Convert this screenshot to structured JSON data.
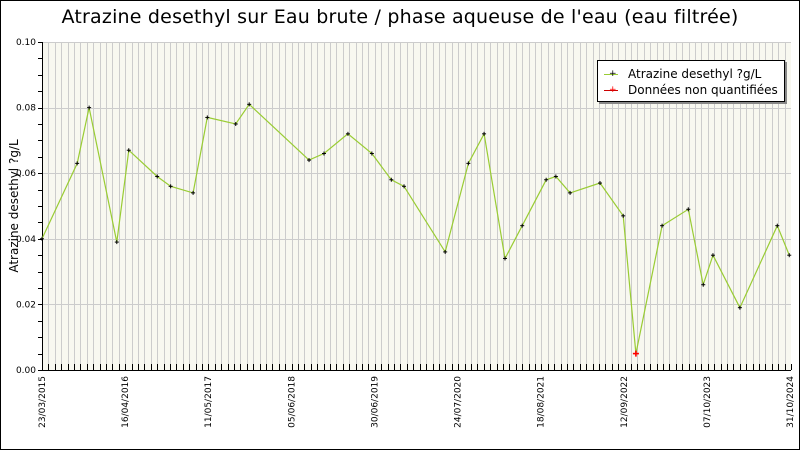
{
  "chart_data": {
    "type": "line",
    "title": "Atrazine desethyl sur Eau brute / phase aqueuse de l'eau (eau filtrée)",
    "xlabel": "",
    "ylabel": "Atrazine desethyl ?g/L",
    "ylim": [
      0,
      0.1
    ],
    "yticks": [
      "0.00",
      "0.02",
      "0.04",
      "0.06",
      "0.08",
      "0.10"
    ],
    "xticks": [
      "23/03/2015",
      "16/04/2016",
      "11/05/2017",
      "05/06/2018",
      "30/06/2019",
      "24/07/2020",
      "18/08/2021",
      "12/09/2022",
      "07/10/2023",
      "31/10/2024"
    ],
    "grid": true,
    "legend_position": "top-right",
    "legend": [
      {
        "label": "Atrazine desethyl ?g/L",
        "line_color": "#99cc33",
        "marker_color": "#000000"
      },
      {
        "label": "Données non quantifiées",
        "line_color": "#cc0000",
        "marker_color": "#ff0000"
      }
    ],
    "colors": {
      "line": "#99cc33",
      "marker": "#000000",
      "non_quantified": "#ff0000",
      "plot_bg": "#f8f8f0",
      "grid": "#cccccc"
    },
    "series": [
      {
        "name": "Atrazine desethyl ?g/L",
        "x_fraction": [
          0.0,
          0.047,
          0.063,
          0.1,
          0.116,
          0.154,
          0.172,
          0.202,
          0.221,
          0.259,
          0.277,
          0.357,
          0.377,
          0.409,
          0.441,
          0.467,
          0.484,
          0.539,
          0.57,
          0.591,
          0.619,
          0.642,
          0.674,
          0.687,
          0.706,
          0.746,
          0.777,
          0.794,
          0.829,
          0.864,
          0.884,
          0.897,
          0.933,
          0.983,
          0.999
        ],
        "values": [
          0.04,
          0.063,
          0.08,
          0.039,
          0.067,
          0.059,
          0.056,
          0.054,
          0.077,
          0.075,
          0.081,
          0.064,
          0.066,
          0.072,
          0.066,
          0.058,
          0.056,
          0.036,
          0.063,
          0.072,
          0.034,
          0.044,
          0.058,
          0.059,
          0.054,
          0.057,
          0.047,
          0.005,
          0.044,
          0.049,
          0.026,
          0.035,
          0.019,
          0.044,
          0.035
        ],
        "non_quantified_index": [
          27
        ]
      }
    ]
  }
}
